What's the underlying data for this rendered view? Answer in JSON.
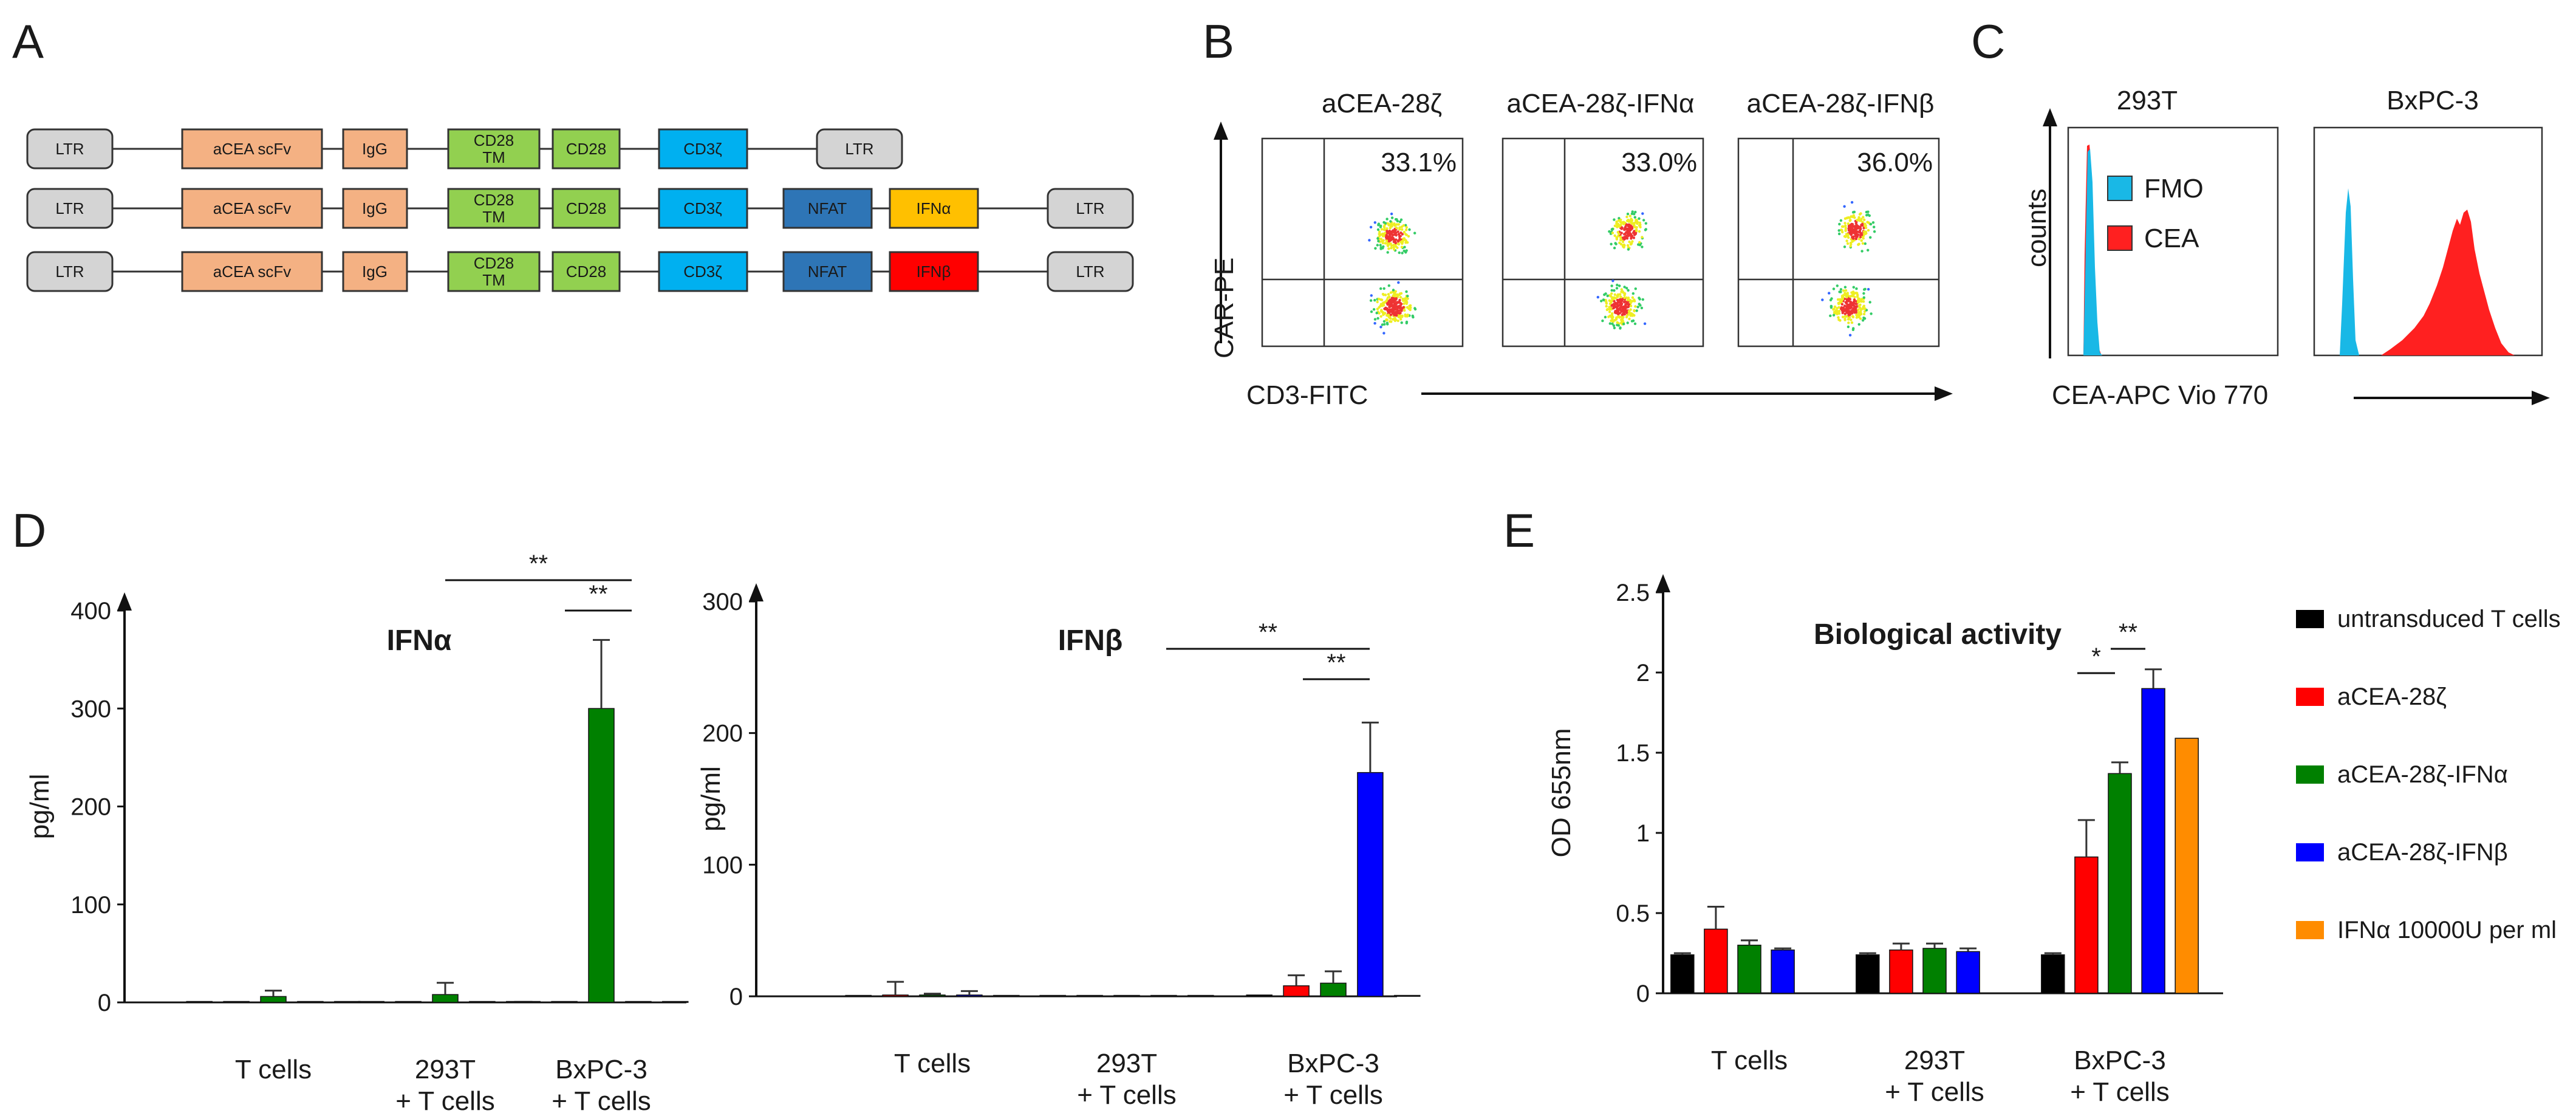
{
  "panels": {
    "a": "A",
    "b": "B",
    "c": "C",
    "d": "D",
    "e": "E"
  },
  "colors": {
    "ltr": "#d4d4d4",
    "scfv": "#f4b183",
    "igg": "#f4b183",
    "cd28": "#92d050",
    "cd3z": "#00b0f0",
    "nfat": "#2e75b6",
    "ifna_box": "#ffc000",
    "ifnb_box": "#ff0000",
    "black": "#000000",
    "red": "#ff0000",
    "green": "#008000",
    "blue": "#0000ff",
    "orange": "#ff8c00",
    "fmo": "#19b8e6",
    "cea": "#ff2020"
  },
  "constructs": [
    {
      "elements": [
        "LTR",
        "aCEA scFv",
        "IgG",
        "CD28 TM",
        "CD28",
        "CD3ζ",
        "LTR"
      ]
    },
    {
      "elements": [
        "LTR",
        "aCEA scFv",
        "IgG",
        "CD28 TM",
        "CD28",
        "CD3ζ",
        "NFAT",
        "IFNα",
        "LTR"
      ]
    },
    {
      "elements": [
        "LTR",
        "aCEA scFv",
        "IgG",
        "CD28 TM",
        "CD28",
        "CD3ζ",
        "NFAT",
        "IFNβ",
        "LTR"
      ]
    }
  ],
  "panel_a": {
    "ltr": "LTR",
    "scfv": "aCEA scFv",
    "igg": "IgG",
    "cd28tm_1": "CD28",
    "cd28tm_2": "TM",
    "cd28": "CD28",
    "cd3z": "CD3ζ",
    "nfat": "NFAT",
    "ifna": "IFNα",
    "ifnb": "IFNβ"
  },
  "panel_b": {
    "plots": [
      {
        "title": "aCEA-28ζ",
        "percent": "33.1%"
      },
      {
        "title": "aCEA-28ζ-IFNα",
        "percent": "33.0%"
      },
      {
        "title": "aCEA-28ζ-IFNβ",
        "percent": "36.0%"
      }
    ],
    "ylabel": "CAR-PE",
    "xlabel": "CD3-FITC"
  },
  "panel_c": {
    "plots": [
      {
        "title": "293T"
      },
      {
        "title": "BxPC-3"
      }
    ],
    "ylabel": "counts",
    "xlabel": "CEA-APC Vio 770",
    "legend": [
      {
        "label": "FMO"
      },
      {
        "label": "CEA"
      }
    ]
  },
  "chart_data": [
    {
      "type": "bar",
      "title": "IFNα",
      "ylabel": "pg/ml",
      "ylim": [
        0,
        400
      ],
      "yticks": [
        "0",
        "100",
        "200",
        "300",
        "400"
      ],
      "categories": [
        "T cells",
        "293T\n+ T cells",
        "BxPC-3\n+ T cells"
      ],
      "category_lines": [
        [
          "T cells"
        ],
        [
          "293T",
          "+ T cells"
        ],
        [
          "BxPC-3",
          "+ T cells"
        ]
      ],
      "series": [
        {
          "name": "untransduced T cells",
          "values": [
            0,
            0,
            0
          ],
          "errors": [
            0,
            0,
            0
          ]
        },
        {
          "name": "aCEA-28ζ",
          "values": [
            0,
            0,
            0
          ],
          "errors": [
            0,
            0,
            0
          ]
        },
        {
          "name": "aCEA-28ζ-IFNα",
          "values": [
            6,
            8,
            300
          ],
          "errors": [
            6,
            12,
            70
          ]
        },
        {
          "name": "aCEA-28ζ-IFNβ",
          "values": [
            0,
            0,
            0
          ],
          "errors": [
            0,
            0,
            0
          ]
        },
        {
          "name": "IFNα 10000U per ml",
          "values": [
            0,
            0,
            0
          ],
          "errors": [
            0,
            0,
            0
          ]
        }
      ],
      "significance": [
        {
          "label": "**"
        },
        {
          "label": "**"
        }
      ]
    },
    {
      "type": "bar",
      "title": "IFNβ",
      "ylabel": "pg/ml",
      "ylim": [
        0,
        300
      ],
      "yticks": [
        "0",
        "100",
        "200",
        "300"
      ],
      "categories": [
        "T cells",
        "293T\n+ T cells",
        "BxPC-3\n+ T cells"
      ],
      "category_lines": [
        [
          "T cells"
        ],
        [
          "293T",
          "+ T cells"
        ],
        [
          "BxPC-3",
          "+ T cells"
        ]
      ],
      "series": [
        {
          "name": "untransduced T cells",
          "values": [
            0,
            0,
            1
          ],
          "errors": [
            0,
            0,
            0
          ]
        },
        {
          "name": "aCEA-28ζ",
          "values": [
            1,
            0,
            8
          ],
          "errors": [
            10,
            0,
            8
          ]
        },
        {
          "name": "aCEA-28ζ-IFNα",
          "values": [
            1,
            0,
            10
          ],
          "errors": [
            1,
            0,
            9
          ]
        },
        {
          "name": "aCEA-28ζ-IFNβ",
          "values": [
            1,
            0,
            170
          ],
          "errors": [
            3,
            0,
            38
          ]
        },
        {
          "name": "IFNα 10000U per ml",
          "values": [
            0,
            0,
            0
          ],
          "errors": [
            0,
            0,
            0
          ]
        }
      ],
      "significance": [
        {
          "label": "**"
        },
        {
          "label": "**"
        }
      ]
    },
    {
      "type": "bar",
      "title": "Biological activity",
      "ylabel": "OD 655nm",
      "ylim": [
        0,
        2.5
      ],
      "yticks": [
        "0",
        "0.5",
        "1",
        "1.5",
        "2",
        "2.5"
      ],
      "categories": [
        "T cells",
        "293T\n+ T cells",
        "BxPC-3\n+ T cells"
      ],
      "category_lines": [
        [
          "T cells"
        ],
        [
          "293T",
          "+ T cells"
        ],
        [
          "BxPC-3",
          "+ T cells"
        ]
      ],
      "series": [
        {
          "name": "untransduced T cells",
          "values": [
            0.24,
            0.24,
            0.24
          ],
          "errors": [
            0.01,
            0.01,
            0.01
          ]
        },
        {
          "name": "aCEA-28ζ",
          "values": [
            0.4,
            0.27,
            0.85
          ],
          "errors": [
            0.14,
            0.04,
            0.23
          ]
        },
        {
          "name": "aCEA-28ζ-IFNα",
          "values": [
            0.3,
            0.28,
            1.37
          ],
          "errors": [
            0.03,
            0.03,
            0.07
          ]
        },
        {
          "name": "aCEA-28ζ-IFNβ",
          "values": [
            0.27,
            0.26,
            1.9
          ],
          "errors": [
            0.01,
            0.02,
            0.12
          ]
        },
        {
          "name": "IFNα 10000U per ml",
          "values": [
            null,
            null,
            1.59
          ],
          "errors": [
            0,
            0,
            0
          ]
        }
      ],
      "significance": [
        {
          "label": "*"
        },
        {
          "label": "**"
        }
      ]
    }
  ],
  "legend_e": [
    {
      "label": "untransduced T cells"
    },
    {
      "label": "aCEA-28ζ"
    },
    {
      "label": "aCEA-28ζ-IFNα"
    },
    {
      "label": "aCEA-28ζ-IFNβ"
    },
    {
      "label": "IFNα 10000U per ml"
    }
  ]
}
